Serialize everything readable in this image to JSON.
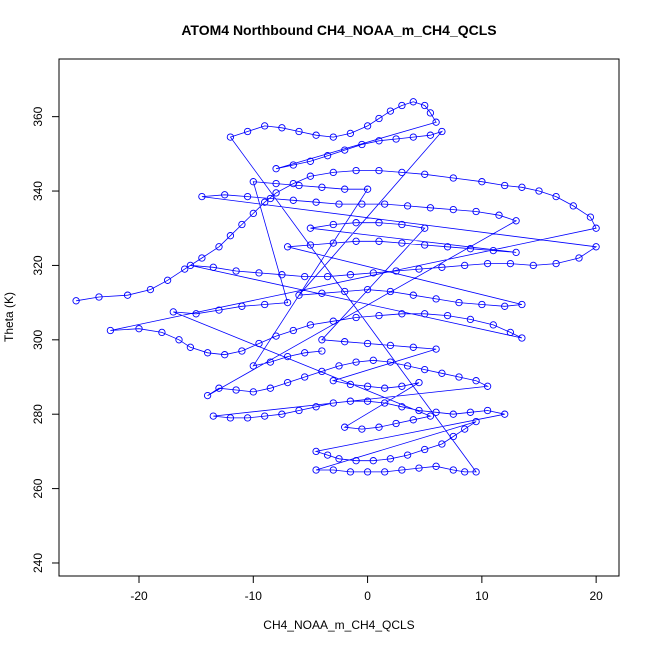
{
  "chart_data": {
    "type": "scatter",
    "title": "ATOM4 Northbound CH4_NOAA_m_CH4_QCLS",
    "xlabel": "CH4_NOAA_m_CH4_QCLS",
    "ylabel": "Theta (K)",
    "xlim": [
      -27,
      22
    ],
    "ylim": [
      236.5,
      375.5
    ],
    "x_ticks": [
      -20,
      -10,
      0,
      10,
      20
    ],
    "y_ticks": [
      240,
      260,
      280,
      300,
      320,
      340,
      360
    ],
    "marker": "open-circle",
    "connected": true,
    "color": "#0000ff",
    "series": [
      {
        "points": [
          [
            -25.5,
            310.5
          ],
          [
            -23.5,
            311.5
          ],
          [
            -21.0,
            312.0
          ],
          [
            -19.0,
            313.5
          ],
          [
            -17.5,
            316.0
          ],
          [
            -16.0,
            319.0
          ],
          [
            -14.5,
            322.0
          ],
          [
            -13.0,
            325.0
          ],
          [
            -12.0,
            328.0
          ],
          [
            -11.0,
            331.0
          ],
          [
            -10.0,
            334.0
          ],
          [
            -9.0,
            337.0
          ],
          [
            -8.0,
            339.5
          ],
          [
            -6.5,
            342.0
          ],
          [
            -5.0,
            344.0
          ],
          [
            -3.0,
            345.0
          ],
          [
            -1.0,
            345.5
          ],
          [
            1.0,
            345.5
          ],
          [
            3.0,
            345.0
          ],
          [
            5.0,
            344.5
          ],
          [
            7.5,
            343.5
          ],
          [
            10.0,
            342.5
          ],
          [
            12.0,
            341.5
          ],
          [
            13.5,
            341.0
          ],
          [
            15.0,
            340.0
          ],
          [
            16.5,
            338.5
          ],
          [
            18.0,
            336.0
          ],
          [
            19.5,
            333.0
          ],
          [
            20.0,
            330.0
          ],
          [
            -22.5,
            302.5
          ],
          [
            -20.0,
            303.0
          ],
          [
            -18.0,
            302.0
          ],
          [
            -16.5,
            300.0
          ],
          [
            -15.5,
            298.0
          ],
          [
            -14.0,
            296.5
          ],
          [
            -12.5,
            296.0
          ],
          [
            -11.0,
            297.0
          ],
          [
            -9.5,
            299.0
          ],
          [
            -8.0,
            301.0
          ],
          [
            -6.5,
            302.5
          ],
          [
            -5.0,
            304.0
          ],
          [
            -3.0,
            305.0
          ],
          [
            -1.0,
            306.0
          ],
          [
            1.0,
            306.5
          ],
          [
            3.0,
            307.0
          ],
          [
            5.0,
            307.0
          ],
          [
            7.0,
            306.5
          ],
          [
            9.0,
            305.5
          ],
          [
            11.0,
            304.0
          ],
          [
            12.5,
            302.0
          ],
          [
            13.5,
            300.5
          ],
          [
            -15.5,
            320.0
          ],
          [
            -13.5,
            319.5
          ],
          [
            -11.5,
            318.5
          ],
          [
            -9.5,
            318.0
          ],
          [
            -7.5,
            317.5
          ],
          [
            -5.5,
            317.0
          ],
          [
            -3.5,
            317.0
          ],
          [
            -1.5,
            317.5
          ],
          [
            0.5,
            318.0
          ],
          [
            2.5,
            318.5
          ],
          [
            4.5,
            319.0
          ],
          [
            6.5,
            319.5
          ],
          [
            8.5,
            320.0
          ],
          [
            10.5,
            320.5
          ],
          [
            12.5,
            320.5
          ],
          [
            14.5,
            320.0
          ],
          [
            16.5,
            320.5
          ],
          [
            18.5,
            322.0
          ],
          [
            20.0,
            325.0
          ],
          [
            -14.5,
            338.5
          ],
          [
            -12.5,
            339.0
          ],
          [
            -10.5,
            338.5
          ],
          [
            -8.5,
            338.0
          ],
          [
            -6.5,
            337.5
          ],
          [
            -4.5,
            337.0
          ],
          [
            -2.5,
            336.5
          ],
          [
            -0.5,
            336.5
          ],
          [
            1.5,
            336.5
          ],
          [
            3.5,
            336.0
          ],
          [
            5.5,
            335.5
          ],
          [
            7.5,
            335.0
          ],
          [
            9.5,
            334.5
          ],
          [
            11.5,
            333.5
          ],
          [
            13.0,
            332.0
          ],
          [
            -14.0,
            285.0
          ],
          [
            -13.0,
            287.0
          ],
          [
            -11.5,
            286.5
          ],
          [
            -10.0,
            286.0
          ],
          [
            -8.5,
            287.0
          ],
          [
            -7.0,
            288.5
          ],
          [
            -5.5,
            290.0
          ],
          [
            -4.0,
            291.5
          ],
          [
            -2.5,
            293.0
          ],
          [
            -1.0,
            294.0
          ],
          [
            0.5,
            294.5
          ],
          [
            2.0,
            294.0
          ],
          [
            3.5,
            293.0
          ],
          [
            5.0,
            292.0
          ],
          [
            6.5,
            291.0
          ],
          [
            8.0,
            290.0
          ],
          [
            9.5,
            289.0
          ],
          [
            10.5,
            287.5
          ],
          [
            -13.5,
            279.5
          ],
          [
            -12.0,
            279.0
          ],
          [
            -10.5,
            279.0
          ],
          [
            -9.0,
            279.5
          ],
          [
            -7.5,
            280.0
          ],
          [
            -6.0,
            281.0
          ],
          [
            -4.5,
            282.0
          ],
          [
            -3.0,
            283.0
          ],
          [
            -1.5,
            283.5
          ],
          [
            0.0,
            283.5
          ],
          [
            1.5,
            283.0
          ],
          [
            3.0,
            282.0
          ],
          [
            4.5,
            281.0
          ],
          [
            6.0,
            280.5
          ],
          [
            7.5,
            280.0
          ],
          [
            9.0,
            280.5
          ],
          [
            10.5,
            281.0
          ],
          [
            12.0,
            280.0
          ],
          [
            -4.5,
            270.0
          ],
          [
            -3.5,
            269.0
          ],
          [
            -2.5,
            268.0
          ],
          [
            -1.0,
            267.5
          ],
          [
            0.5,
            267.5
          ],
          [
            2.0,
            268.0
          ],
          [
            3.5,
            269.0
          ],
          [
            5.0,
            270.5
          ],
          [
            6.5,
            272.0
          ],
          [
            7.5,
            274.0
          ],
          [
            8.5,
            276.0
          ],
          [
            9.5,
            278.0
          ],
          [
            -4.5,
            265.0
          ],
          [
            -3.0,
            265.0
          ],
          [
            -1.5,
            264.5
          ],
          [
            0.0,
            264.5
          ],
          [
            1.5,
            264.5
          ],
          [
            3.0,
            265.0
          ],
          [
            4.5,
            265.5
          ],
          [
            6.0,
            266.0
          ],
          [
            7.5,
            265.0
          ],
          [
            8.5,
            264.5
          ],
          [
            9.5,
            264.5
          ],
          [
            -12.0,
            354.5
          ],
          [
            -10.5,
            356.0
          ],
          [
            -9.0,
            357.5
          ],
          [
            -7.5,
            357.0
          ],
          [
            -6.0,
            356.0
          ],
          [
            -4.5,
            355.0
          ],
          [
            -3.0,
            354.5
          ],
          [
            -1.5,
            355.5
          ],
          [
            0.0,
            357.5
          ],
          [
            1.0,
            359.5
          ],
          [
            2.0,
            361.5
          ],
          [
            3.0,
            363.0
          ],
          [
            4.0,
            364.0
          ],
          [
            5.0,
            363.0
          ],
          [
            5.5,
            361.0
          ],
          [
            6.0,
            358.5
          ],
          [
            -8.0,
            346.0
          ],
          [
            -6.5,
            347.0
          ],
          [
            -5.0,
            348.0
          ],
          [
            -3.5,
            349.5
          ],
          [
            -2.0,
            351.0
          ],
          [
            -0.5,
            352.5
          ],
          [
            1.0,
            353.5
          ],
          [
            2.5,
            354.0
          ],
          [
            4.0,
            354.5
          ],
          [
            5.5,
            355.0
          ],
          [
            6.5,
            356.0
          ],
          [
            -6.0,
            312.0
          ],
          [
            -4.0,
            312.5
          ],
          [
            -2.0,
            313.0
          ],
          [
            0.0,
            313.5
          ],
          [
            2.0,
            313.0
          ],
          [
            4.0,
            312.0
          ],
          [
            6.0,
            311.0
          ],
          [
            8.0,
            310.0
          ],
          [
            10.0,
            309.5
          ],
          [
            12.0,
            309.0
          ],
          [
            13.5,
            309.5
          ],
          [
            -7.0,
            325.0
          ],
          [
            -5.0,
            325.5
          ],
          [
            -3.0,
            326.0
          ],
          [
            -1.0,
            326.5
          ],
          [
            1.0,
            326.5
          ],
          [
            3.0,
            326.0
          ],
          [
            5.0,
            325.5
          ],
          [
            7.0,
            325.0
          ],
          [
            9.0,
            324.5
          ],
          [
            11.0,
            324.0
          ],
          [
            13.0,
            323.5
          ],
          [
            -5.0,
            330.0
          ],
          [
            -3.0,
            331.0
          ],
          [
            -1.0,
            331.5
          ],
          [
            1.0,
            331.5
          ],
          [
            3.0,
            331.0
          ],
          [
            5.0,
            330.0
          ],
          [
            -4.0,
            300.0
          ],
          [
            -2.0,
            299.5
          ],
          [
            0.0,
            299.0
          ],
          [
            2.0,
            298.5
          ],
          [
            4.0,
            298.0
          ],
          [
            6.0,
            297.5
          ],
          [
            -3.0,
            289.0
          ],
          [
            -1.5,
            288.0
          ],
          [
            0.0,
            287.5
          ],
          [
            1.5,
            287.0
          ],
          [
            3.0,
            287.5
          ],
          [
            4.5,
            288.5
          ],
          [
            -2.0,
            276.5
          ],
          [
            -0.5,
            276.0
          ],
          [
            1.0,
            276.5
          ],
          [
            2.5,
            277.5
          ],
          [
            4.0,
            278.5
          ],
          [
            5.5,
            279.5
          ],
          [
            -17.0,
            307.5
          ],
          [
            -15.0,
            307.0
          ],
          [
            -13.0,
            308.0
          ],
          [
            -11.0,
            309.0
          ],
          [
            -9.0,
            309.5
          ],
          [
            -7.0,
            310.0
          ],
          [
            -10.0,
            342.5
          ],
          [
            -8.0,
            342.0
          ],
          [
            -6.0,
            341.5
          ],
          [
            -4.0,
            341.0
          ],
          [
            -2.0,
            340.5
          ],
          [
            0.0,
            340.5
          ],
          [
            -10.0,
            293.0
          ],
          [
            -8.5,
            294.0
          ],
          [
            -7.0,
            295.5
          ],
          [
            -5.5,
            296.5
          ],
          [
            -4.0,
            297.0
          ]
        ]
      }
    ]
  }
}
